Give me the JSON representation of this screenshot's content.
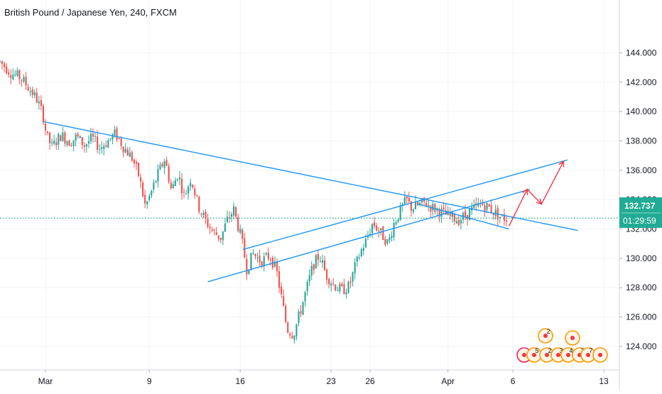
{
  "header": {
    "title": "British Pound / Japanese Yen, 240, FXCM"
  },
  "price_scale": {
    "last_price": "132.737",
    "countdown": "01:29:59"
  },
  "chart_data": {
    "type": "candlestick",
    "title": "British Pound / Japanese Yen, 240, FXCM",
    "xlabel": "",
    "ylabel": "",
    "ylim": [
      122.4,
      147.6
    ],
    "grid": true,
    "y_ticks": [
      "124.000",
      "126.000",
      "128.000",
      "130.000",
      "132.000",
      "134.000",
      "136.000",
      "138.000",
      "140.000",
      "142.000",
      "144.000"
    ],
    "y_tick_values": [
      124,
      126,
      128,
      130,
      132,
      134,
      136,
      138,
      140,
      142,
      144
    ],
    "x_ticks": [
      {
        "label": "Mar",
        "day": 1
      },
      {
        "label": "9",
        "day": 9
      },
      {
        "label": "16",
        "day": 16
      },
      {
        "label": "23",
        "day": 23
      },
      {
        "label": "26",
        "day": 26
      },
      {
        "label": "Apr",
        "day": 32
      },
      {
        "label": "6",
        "day": 37
      },
      {
        "label": "13",
        "day": 44
      }
    ],
    "x_domain_days": [
      -2.5,
      45.2
    ],
    "current_price": 132.737,
    "price_path": [
      [
        -2.5,
        143.4
      ],
      [
        -1.6,
        142.6
      ],
      [
        -0.9,
        142.3
      ],
      [
        -0.2,
        141.5
      ],
      [
        0.3,
        140.9
      ],
      [
        0.8,
        139.8
      ],
      [
        1.1,
        138.3
      ],
      [
        1.5,
        137.6
      ],
      [
        2.2,
        138.4
      ],
      [
        2.9,
        137.9
      ],
      [
        3.4,
        138.3
      ],
      [
        4.0,
        137.7
      ],
      [
        4.6,
        138.2
      ],
      [
        5.2,
        137.5
      ],
      [
        5.8,
        138.0
      ],
      [
        6.4,
        138.5
      ],
      [
        7.0,
        137.6
      ],
      [
        7.7,
        136.8
      ],
      [
        8.2,
        135.6
      ],
      [
        8.7,
        133.5
      ],
      [
        9.1,
        134.4
      ],
      [
        9.6,
        135.6
      ],
      [
        10.2,
        136.8
      ],
      [
        10.7,
        134.6
      ],
      [
        11.2,
        135.8
      ],
      [
        11.7,
        134.2
      ],
      [
        12.2,
        135.5
      ],
      [
        12.8,
        133.5
      ],
      [
        13.3,
        132.6
      ],
      [
        13.9,
        131.8
      ],
      [
        14.5,
        131.4
      ],
      [
        15.0,
        132.6
      ],
      [
        15.5,
        133.3
      ],
      [
        16.1,
        131.3
      ],
      [
        16.5,
        129.3
      ],
      [
        17.0,
        130.3
      ],
      [
        17.6,
        129.8
      ],
      [
        18.3,
        130.2
      ],
      [
        18.8,
        129.1
      ],
      [
        19.2,
        127.2
      ],
      [
        19.6,
        125.2
      ],
      [
        20.1,
        124.8
      ],
      [
        20.6,
        126.3
      ],
      [
        21.1,
        127.9
      ],
      [
        21.6,
        129.5
      ],
      [
        22.1,
        130.2
      ],
      [
        22.6,
        128.9
      ],
      [
        23.2,
        128.2
      ],
      [
        23.8,
        127.8
      ],
      [
        24.4,
        128.1
      ],
      [
        24.8,
        129.3
      ],
      [
        25.3,
        130.5
      ],
      [
        25.7,
        131.2
      ],
      [
        26.2,
        132.4
      ],
      [
        26.6,
        132.0
      ],
      [
        27.0,
        131.5
      ],
      [
        27.4,
        131.0
      ],
      [
        27.8,
        132.3
      ],
      [
        28.3,
        133.2
      ],
      [
        28.8,
        134.0
      ],
      [
        29.2,
        133.4
      ],
      [
        29.7,
        133.6
      ],
      [
        30.2,
        133.8
      ],
      [
        30.7,
        133.5
      ],
      [
        31.2,
        133.3
      ],
      [
        31.7,
        133.0
      ],
      [
        32.3,
        132.8
      ],
      [
        32.8,
        132.6
      ],
      [
        33.3,
        132.9
      ],
      [
        33.9,
        133.3
      ],
      [
        34.5,
        133.7
      ],
      [
        35.1,
        133.5
      ],
      [
        35.6,
        133.1
      ],
      [
        36.1,
        132.8
      ],
      [
        36.5,
        132.7
      ]
    ],
    "trendlines": [
      {
        "name": "descending-resistance",
        "color": "#2196f3",
        "points": [
          [
            0.9,
            139.3
          ],
          [
            42.0,
            131.9
          ]
        ]
      },
      {
        "name": "upper-channel",
        "color": "#2196f3",
        "points": [
          [
            16.2,
            130.6
          ],
          [
            41.2,
            136.7
          ]
        ]
      },
      {
        "name": "lower-channel",
        "color": "#2196f3",
        "points": [
          [
            13.5,
            128.4
          ],
          [
            38.3,
            134.7
          ]
        ]
      },
      {
        "name": "falling-wedge",
        "color": "#2196f3",
        "points": [
          [
            29.7,
            133.7
          ],
          [
            36.7,
            132.0
          ]
        ]
      }
    ],
    "projection": {
      "color": "#f23645",
      "points": [
        [
          36.7,
          132.2
        ],
        [
          38.1,
          134.7
        ],
        [
          39.2,
          133.7
        ],
        [
          40.9,
          136.6
        ]
      ]
    },
    "event_markers": {
      "counts": [
        "2",
        "5",
        "2",
        "3",
        "4",
        "3",
        "7"
      ]
    }
  }
}
